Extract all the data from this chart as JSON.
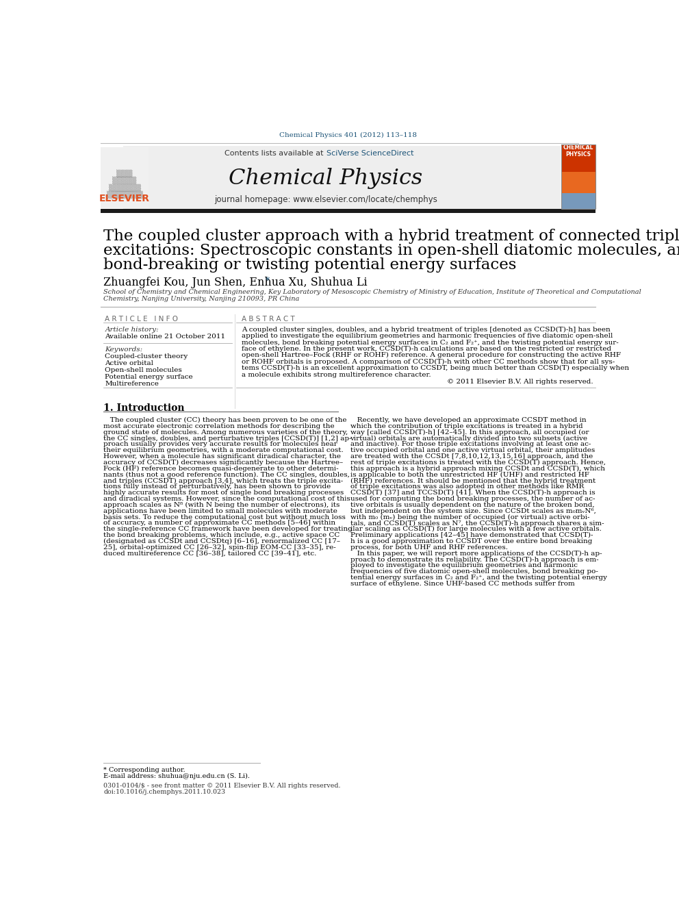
{
  "journal_ref": "Chemical Physics 401 (2012) 113–118",
  "journal_ref_color": "#1a5276",
  "header_bg": "#eeeeee",
  "header_text1": "Contents lists available at ",
  "header_link1": "SciVerse ScienceDirect",
  "header_link_color": "#1a5276",
  "journal_title": "Chemical Physics",
  "journal_homepage": "journal homepage: www.elsevier.com/locate/chemphys",
  "thick_bar_color": "#1a1a1a",
  "article_title_line1": "The coupled cluster approach with a hybrid treatment of connected triple",
  "article_title_line2": "excitations: Spectroscopic constants in open-shell diatomic molecules, and",
  "article_title_line3": "bond-breaking or twisting potential energy surfaces",
  "authors": "Zhuangfei Kou, Jun Shen, Enhua Xu, Shuhua Li",
  "author_star": "*",
  "affiliation_line1": "School of Chemistry and Chemical Engineering, Key Laboratory of Mesoscopic Chemistry of Ministry of Education, Institute of Theoretical and Computational",
  "affiliation_line2": "Chemistry, Nanjing University, Nanjing 210093, PR China",
  "article_info_header": "A R T I C L E   I N F O",
  "article_history_label": "Article history:",
  "article_history_value": "Available online 21 October 2011",
  "keywords_label": "Keywords:",
  "keywords": [
    "Coupled-cluster theory",
    "Active orbital",
    "Open-shell molecules",
    "Potential energy surface",
    "Multireference"
  ],
  "abstract_header": "A B S T R A C T",
  "abstract_text": "A coupled cluster singles, doubles, and a hybrid treatment of triples [denoted as CCSD(T)-h] has been\napplied to investigate the equilibrium geometries and harmonic frequencies of five diatomic open-shell\nmolecules, bond breaking potential energy surfaces in C₂ and F₂⁺, and the twisting potential energy sur-\nface of ethylene. In the present work, CCSD(T)-h calculations are based on the restricted or restricted\nopen-shell Hartree–Fock (RHF or ROHF) reference. A general procedure for constructing the active RHF\nor ROHF orbitals is proposed. A comparison of CCSD(T)-h with other CC methods show that for all sys-\ntems CCSD(T)-h is an excellent approximation to CCSDT, being much better than CCSD(T) especially when\na molecule exhibits strong multireference character.",
  "copyright": "© 2011 Elsevier B.V. All rights reserved.",
  "section1_title": "1. Introduction",
  "intro_col1": "   The coupled cluster (CC) theory has been proven to be one of the\nmost accurate electronic correlation methods for describing the\nground state of molecules. Among numerous varieties of the theory,\nthe CC singles, doubles, and perturbative triples [CCSD(T)] [1,2] ap-\nproach usually provides very accurate results for molecules near\ntheir equilibrium geometries, with a moderate computational cost.\nHowever, when a molecule has significant diradical character, the\naccuracy of CCSD(T) decreases significantly because the Hartree–\nFock (HF) reference becomes quasi-degenerate to other determi-\nnants (thus not a good reference function). The CC singles, doubles,\nand triples (CCSDT) approach [3,4], which treats the triple excita-\ntions fully instead of perturbatively, has been shown to provide\nhighly accurate results for most of single bond breaking processes\nand diradical systems. However, since the computational cost of this\napproach scales as N⁸ (with N being the number of electrons), its\napplications have been limited to small molecules with moderate\nbasis sets. To reduce the computational cost but without much loss\nof accuracy, a number of approximate CC methods [5–46] within\nthe single-reference CC framework have been developed for treating\nthe bond breaking problems, which include, e.g., active space CC\n(designated as CCSDt and CCSDtq) [6–16], renormalized CC [17–\n25], orbital-optimized CC [26–32], spin-flip EOM-CC [33–35], re-\nduced multireference CC [36–38], tailored CC [39–41], etc.",
  "intro_col2": "   Recently, we have developed an approximate CCSDT method in\nwhich the contribution of triple excitations is treated in a hybrid\nway [called CCSD(T)-h] [42–45]. In this approach, all occupied (or\nvirtual) orbitals are automatically divided into two subsets (active\nand inactive). For those triple excitations involving at least one ac-\ntive occupied orbital and one active virtual orbital, their amplitudes\nare treated with the CCSDt [7,8,10,12,13,15,16] approach, and the\nrest of triple excitations is treated with the CCSD(T) approach. Hence,\nthis approach is a hybrid approach mixing CCSDt and CCSD(T), which\nis applicable to both the unrestricted HF (UHF) and restricted HF\n(RHF) references. It should be mentioned that the hybrid treatment\nof triple excitations was also adopted in other methods like RMR\nCCSD(T) [37] and TCCSD(T) [41]. When the CCSD(T)-h approach is\nused for computing the bond breaking processes, the number of ac-\ntive orbitals is usually dependent on the nature of the broken bond,\nbut independent on the system size. Since CCSDt scales as m₀mᵥN⁶,\nwith m₀ (mᵥ) being the number of occupied (or virtual) active orbi-\ntals, and CCSD(T) scales as N⁷, the CCSD(T)-h approach shares a sim-\nilar scaling as CCSD(T) for large molecules with a few active orbitals.\nPreliminary applications [42–45] have demonstrated that CCSD(T)-\nh is a good approximation to CCSDT over the entire bond breaking\nprocess, for both UHF and RHF references.\n   In this paper, we will report more applications of the CCSD(T)-h ap-\nproach to demonstrate its reliability. The CCSD(T)-h approach is em-\nployed to investigate the equilibrium geometries and harmonic\nfrequencies of five diatomic open-shell molecules, bond breaking po-\ntential energy surfaces in C₂ and F₂⁺, and the twisting potential energy\nsurface of ethylene. Since UHF-based CC methods suffer from",
  "footnote_star": "* Corresponding author.",
  "footnote_email": "E-mail address: shuhua@nju.edu.cn (S. Li).",
  "footnote_issn": "0301-0104/$ - see front matter © 2011 Elsevier B.V. All rights reserved.",
  "footnote_doi": "doi:10.1016/j.chemphys.2011.10.023",
  "bg_color": "#ffffff",
  "text_color": "#000000",
  "elsevier_red": "#e05020",
  "cover_red": "#cc3300",
  "cover_orange": "#e86820"
}
